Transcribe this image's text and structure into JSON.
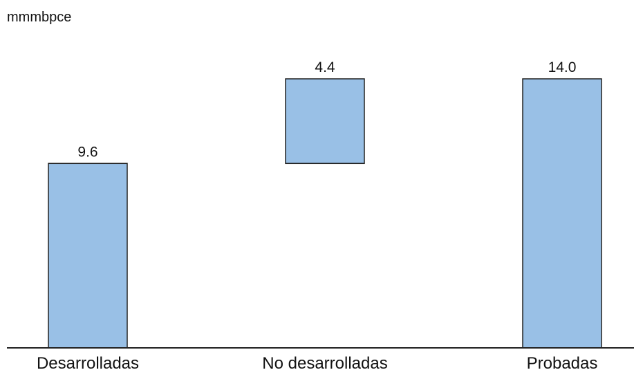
{
  "chart_data": {
    "type": "bar",
    "subtype": "waterfall",
    "unit_label": "mmmbpce",
    "categories": [
      "Desarrolladas",
      "No desarrolladas",
      "Probadas"
    ],
    "values": [
      9.6,
      4.4,
      14.0
    ],
    "value_labels": [
      "9.6",
      "4.4",
      "14.0"
    ],
    "bar_bases": [
      0,
      9.6,
      0
    ],
    "ylim": [
      0,
      14.0
    ],
    "bar_color": "#99c0e6",
    "bar_edge_color": "#222222",
    "axis_color": "#222222",
    "grid": false,
    "legend": "none"
  }
}
